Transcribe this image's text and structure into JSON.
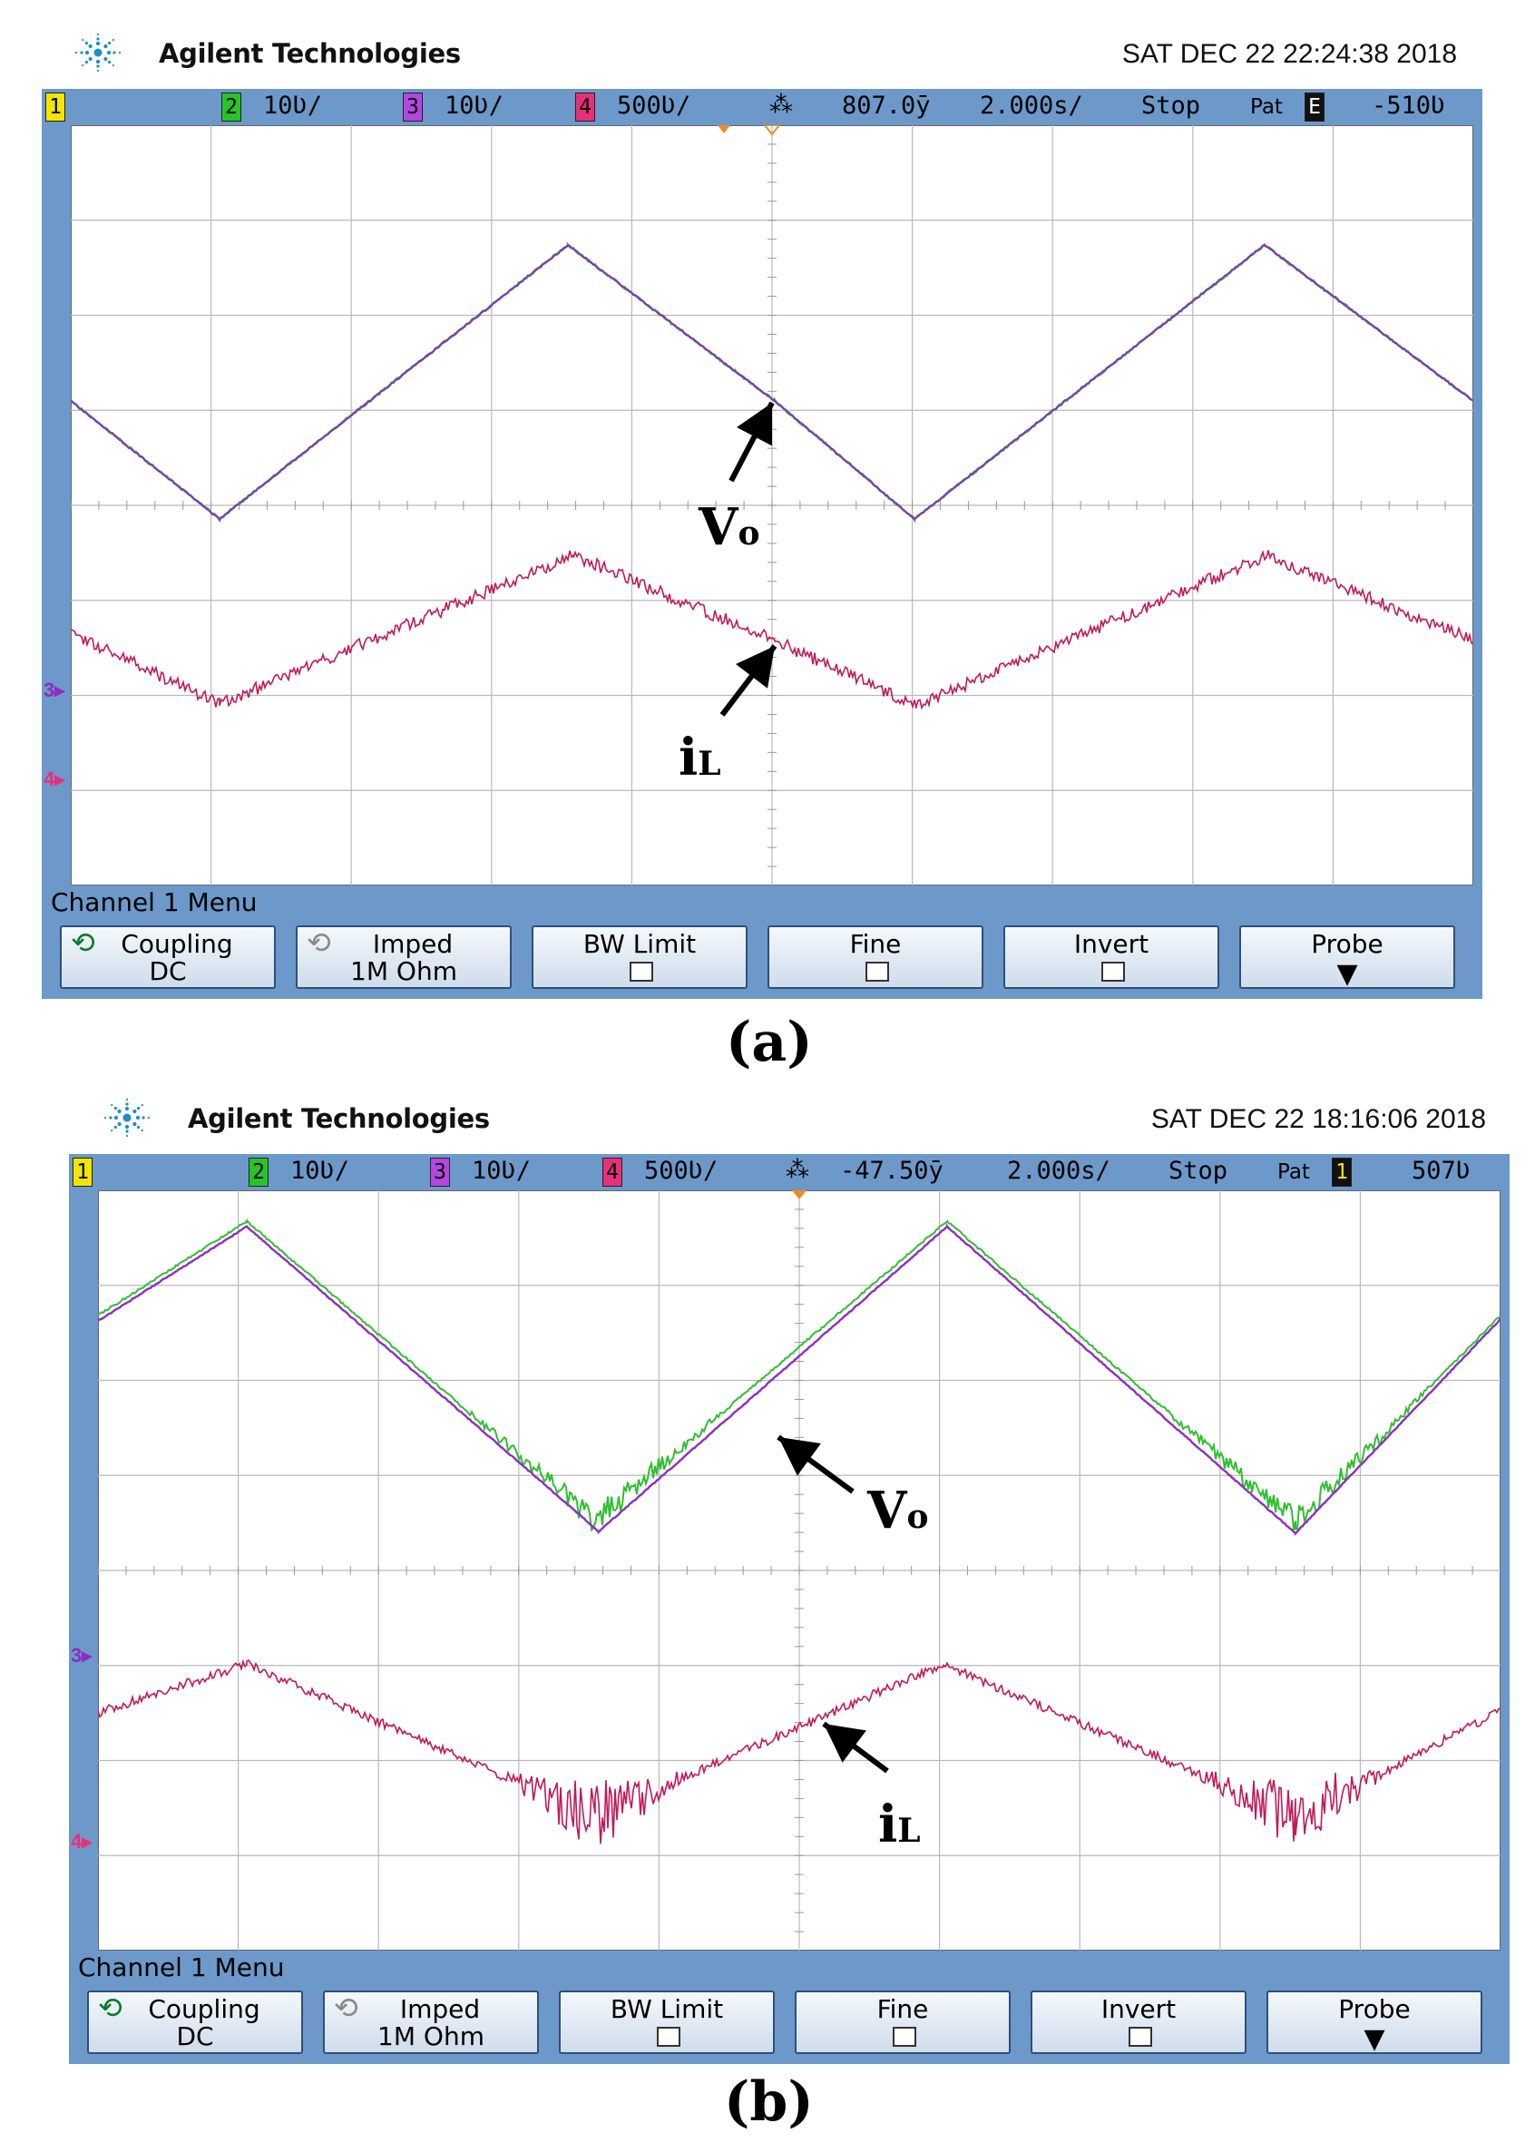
{
  "panels": [
    {
      "id": "a",
      "brand": "Agilent Technologies",
      "datetime": "SAT DEC 22 22:24:38 2018",
      "status": {
        "ch1_index": "1",
        "ch2_index": "2",
        "ch2_scale": "10Ʋ/",
        "ch3_index": "3",
        "ch3_scale": "10Ʋ/",
        "ch4_index": "4",
        "ch4_scale": "500Ʋ/",
        "trigger_delay": "807.0ȳ",
        "timebase": "2.000s/",
        "run_state": "Stop",
        "pat_label": "Pat",
        "trigger_source": "E",
        "trigger_level": "-510Ʋ"
      },
      "marker_3": "3",
      "marker_4": "4",
      "annotations": {
        "vo": "Vo",
        "il": "iL"
      },
      "menu": {
        "title": "Channel 1  Menu",
        "keys": [
          {
            "top": "Coupling",
            "bottom": "DC"
          },
          {
            "top": "Imped",
            "bottom": "1M Ohm"
          },
          {
            "top": "BW Limit"
          },
          {
            "top": "Fine"
          },
          {
            "top": "Invert"
          },
          {
            "top": "Probe"
          }
        ]
      },
      "label": "(a)",
      "colors": {
        "vo_trace": "#8e2cc4",
        "vo_trace_alt": "#2fbf2f",
        "il_trace": "#c2185b"
      }
    },
    {
      "id": "b",
      "brand": "Agilent Technologies",
      "datetime": "SAT DEC 22 18:16:06 2018",
      "status": {
        "ch1_index": "1",
        "ch2_index": "2",
        "ch2_scale": "10Ʋ/",
        "ch3_index": "3",
        "ch3_scale": "10Ʋ/",
        "ch4_index": "4",
        "ch4_scale": "500Ʋ/",
        "trigger_delay": "-47.50ȳ",
        "timebase": "2.000s/",
        "run_state": "Stop",
        "pat_label": "Pat",
        "trigger_source": "1",
        "trigger_level": "507Ʋ"
      },
      "marker_3": "3",
      "marker_4": "4",
      "annotations": {
        "vo": "Vo",
        "il": "iL"
      },
      "menu": {
        "title": "Channel 1  Menu",
        "keys": [
          {
            "top": "Coupling",
            "bottom": "DC"
          },
          {
            "top": "Imped",
            "bottom": "1M Ohm"
          },
          {
            "top": "BW Limit"
          },
          {
            "top": "Fine"
          },
          {
            "top": "Invert"
          },
          {
            "top": "Probe"
          }
        ]
      },
      "label": "(b)",
      "colors": {
        "vo_trace": "#8e2cc4",
        "vo_trace_alt": "#2fbf2f",
        "il_trace": "#c2185b"
      }
    }
  ]
}
